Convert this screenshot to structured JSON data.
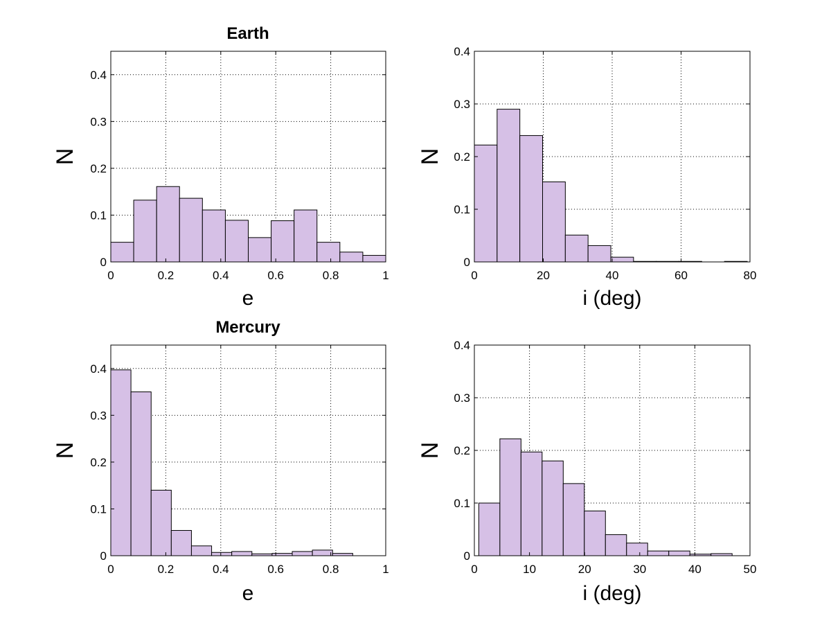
{
  "figure": {
    "background": "#ffffff",
    "bar_color": "#d6c0e6",
    "edge_color": "#000000"
  },
  "chart_data": [
    {
      "type": "bar",
      "title": "Earth",
      "xlabel": "e",
      "ylabel": "N",
      "xlim": [
        0,
        1
      ],
      "ylim": [
        0,
        0.45
      ],
      "xticks": [
        0,
        0.2,
        0.4,
        0.6,
        0.8,
        1
      ],
      "xtick_labels": [
        "0",
        "0.2",
        "0.4",
        "0.6",
        "0.8",
        "1"
      ],
      "yticks": [
        0,
        0.1,
        0.2,
        0.3,
        0.4
      ],
      "ytick_labels": [
        "0",
        "0.1",
        "0.2",
        "0.3",
        "0.4"
      ],
      "grid": true,
      "bin_edges": [
        0,
        0.0833,
        0.1667,
        0.25,
        0.3333,
        0.4167,
        0.5,
        0.5833,
        0.6667,
        0.75,
        0.8333,
        0.9167,
        1.0
      ],
      "values": [
        0.042,
        0.132,
        0.161,
        0.136,
        0.111,
        0.089,
        0.052,
        0.088,
        0.111,
        0.042,
        0.021,
        0.014
      ]
    },
    {
      "type": "bar",
      "title": "",
      "xlabel": "i (deg)",
      "ylabel": "N",
      "xlim": [
        0,
        80
      ],
      "ylim": [
        0,
        0.4
      ],
      "xticks": [
        0,
        20,
        40,
        60,
        80
      ],
      "xtick_labels": [
        "0",
        "20",
        "40",
        "60",
        "80"
      ],
      "yticks": [
        0,
        0.1,
        0.2,
        0.3,
        0.4
      ],
      "ytick_labels": [
        "0",
        "0.1",
        "0.2",
        "0.3",
        "0.4"
      ],
      "grid": true,
      "bin_edges": [
        0,
        6.6,
        13.2,
        19.8,
        26.4,
        33.0,
        39.6,
        46.2,
        52.8,
        59.4,
        66.0,
        72.6,
        79.2
      ],
      "values": [
        0.222,
        0.29,
        0.24,
        0.152,
        0.051,
        0.031,
        0.009,
        0.001,
        0.001,
        0.001,
        0.0,
        0.001
      ]
    },
    {
      "type": "bar",
      "title": "Mercury",
      "xlabel": "e",
      "ylabel": "N",
      "xlim": [
        0,
        1
      ],
      "ylim": [
        0,
        0.45
      ],
      "xticks": [
        0,
        0.2,
        0.4,
        0.6,
        0.8,
        1
      ],
      "xtick_labels": [
        "0",
        "0.2",
        "0.4",
        "0.6",
        "0.8",
        "1"
      ],
      "yticks": [
        0,
        0.1,
        0.2,
        0.3,
        0.4
      ],
      "ytick_labels": [
        "0",
        "0.1",
        "0.2",
        "0.3",
        "0.4"
      ],
      "grid": true,
      "bin_edges": [
        0,
        0.0733,
        0.1467,
        0.22,
        0.2933,
        0.3667,
        0.44,
        0.5133,
        0.5867,
        0.66,
        0.7333,
        0.8067,
        0.88
      ],
      "values": [
        0.397,
        0.35,
        0.14,
        0.054,
        0.021,
        0.007,
        0.009,
        0.004,
        0.005,
        0.009,
        0.012,
        0.005
      ]
    },
    {
      "type": "bar",
      "title": "",
      "xlabel": "i (deg)",
      "ylabel": "N",
      "xlim": [
        0,
        50
      ],
      "ylim": [
        0,
        0.4
      ],
      "xticks": [
        0,
        10,
        20,
        30,
        40,
        50
      ],
      "xtick_labels": [
        "0",
        "10",
        "20",
        "30",
        "40",
        "50"
      ],
      "yticks": [
        0,
        0.1,
        0.2,
        0.3,
        0.4
      ],
      "ytick_labels": [
        "0",
        "0.1",
        "0.2",
        "0.3",
        "0.4"
      ],
      "grid": true,
      "bin_edges": [
        0.8,
        4.63,
        8.46,
        12.29,
        16.12,
        19.95,
        23.78,
        27.61,
        31.44,
        35.27,
        39.1,
        42.93,
        46.76
      ],
      "values": [
        0.1,
        0.222,
        0.197,
        0.18,
        0.137,
        0.085,
        0.04,
        0.024,
        0.009,
        0.009,
        0.003,
        0.004
      ]
    }
  ]
}
